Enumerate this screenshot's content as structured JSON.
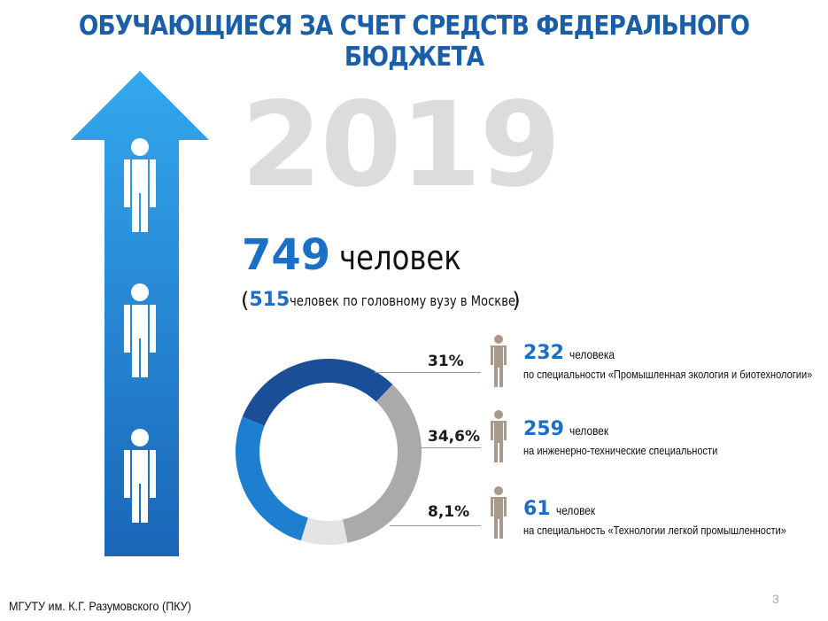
{
  "header": {
    "title": "ОБУЧАЮЩИЕСЯ ЗА СЧЕТ СРЕДСТВ ФЕДЕРАЛЬНОГО БЮДЖЕТА"
  },
  "year": "2019",
  "total": {
    "value": "749",
    "unit": "человек"
  },
  "subtotal": {
    "open": "(",
    "value": "515",
    "text": " человек по головному вузу в Москве",
    "close": ")"
  },
  "chart_data": {
    "type": "pie",
    "style": "donut",
    "segments": [
      {
        "label": "31%",
        "value": 31,
        "color": "#1a4f98"
      },
      {
        "label": "34,6%",
        "value": 34.6,
        "color": "#aaaaaa"
      },
      {
        "label": "8,1%",
        "value": 8.1,
        "color": "#e4e4e4"
      },
      {
        "label": "",
        "value": 26.3,
        "color": "#1e7ed0"
      }
    ]
  },
  "stats": [
    {
      "pct": "31%",
      "value": "232",
      "unit": "человека",
      "desc": "по специальности «Промышленная экология и биотехнологии»"
    },
    {
      "pct": "34,6%",
      "value": "259",
      "unit": "человек",
      "desc": "на инженерно-технические специальности"
    },
    {
      "pct": "8,1%",
      "value": "61",
      "unit": "человек",
      "desc": "на специальность «Технологии легкой промышленности»"
    }
  ],
  "icons": {
    "arrow": "up-arrow-icon",
    "person": "person-icon"
  },
  "colors": {
    "brand": "#1b6fc4",
    "title": "#1b5ea8",
    "person_small": "#a8998a"
  },
  "footer": {
    "org": "МГУТУ им. К.Г. Разумовского (ПКУ)",
    "page": "3"
  }
}
